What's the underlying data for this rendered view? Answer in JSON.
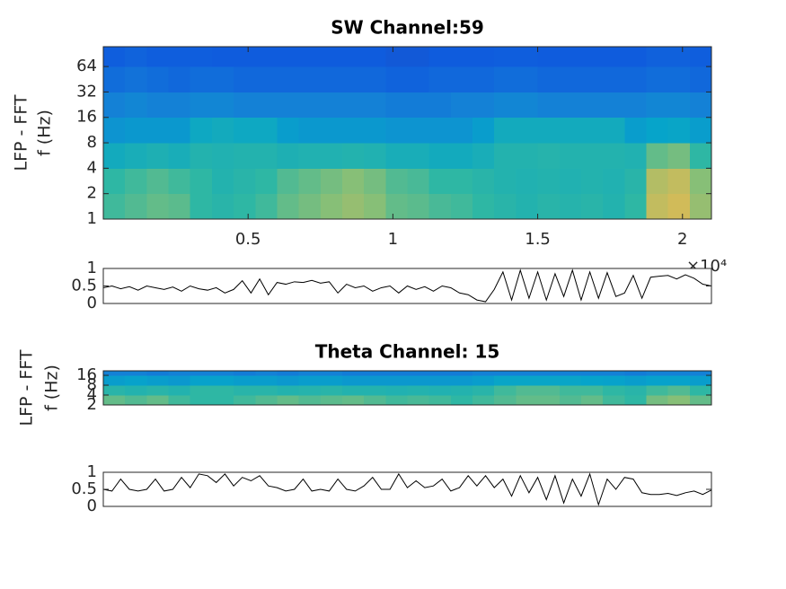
{
  "chart_data": [
    {
      "type": "heatmap",
      "title": "SW Channel:59",
      "ylabel": [
        "LFP - FFT",
        "f (Hz)"
      ],
      "colormap": "parula",
      "clim": [
        0,
        1
      ],
      "yscale": "log",
      "xlim": [
        0,
        21000
      ],
      "xticks": [
        {
          "value": 5000,
          "label": "0.5"
        },
        {
          "value": 10000,
          "label": "1"
        },
        {
          "value": 15000,
          "label": "1.5"
        },
        {
          "value": 20000,
          "label": "2"
        }
      ],
      "x_multiplier": "×10⁴",
      "ylim": [
        1,
        110
      ],
      "yticks": [
        1,
        2,
        4,
        8,
        16,
        32,
        64
      ],
      "xbins": [
        0,
        750,
        1500,
        2250,
        3000,
        3750,
        4500,
        5250,
        6000,
        6750,
        7500,
        8250,
        9000,
        9750,
        10500,
        11250,
        12000,
        12750,
        13500,
        14250,
        15000,
        15750,
        16500,
        17250,
        18000,
        18750,
        19500,
        20250,
        21000
      ],
      "ybins": [
        1,
        2,
        4,
        8,
        16,
        32,
        64,
        110
      ],
      "z": [
        [
          0.62,
          0.64,
          0.66,
          0.65,
          0.6,
          0.58,
          0.6,
          0.62,
          0.66,
          0.68,
          0.7,
          0.72,
          0.7,
          0.66,
          0.65,
          0.63,
          0.62,
          0.6,
          0.58,
          0.56,
          0.58,
          0.57,
          0.58,
          0.56,
          0.6,
          0.78,
          0.8,
          0.72
        ],
        [
          0.6,
          0.62,
          0.64,
          0.62,
          0.6,
          0.56,
          0.58,
          0.6,
          0.64,
          0.66,
          0.68,
          0.7,
          0.68,
          0.64,
          0.63,
          0.6,
          0.6,
          0.58,
          0.56,
          0.55,
          0.56,
          0.55,
          0.56,
          0.55,
          0.58,
          0.76,
          0.78,
          0.7
        ],
        [
          0.5,
          0.52,
          0.54,
          0.52,
          0.56,
          0.55,
          0.56,
          0.56,
          0.54,
          0.55,
          0.55,
          0.56,
          0.55,
          0.52,
          0.52,
          0.5,
          0.5,
          0.52,
          0.56,
          0.56,
          0.57,
          0.56,
          0.56,
          0.56,
          0.55,
          0.66,
          0.68,
          0.6
        ],
        [
          0.38,
          0.4,
          0.4,
          0.4,
          0.48,
          0.5,
          0.48,
          0.48,
          0.42,
          0.4,
          0.4,
          0.4,
          0.4,
          0.38,
          0.38,
          0.38,
          0.38,
          0.42,
          0.5,
          0.5,
          0.5,
          0.5,
          0.5,
          0.5,
          0.42,
          0.45,
          0.46,
          0.42
        ],
        [
          0.3,
          0.32,
          0.3,
          0.3,
          0.32,
          0.32,
          0.3,
          0.3,
          0.3,
          0.3,
          0.3,
          0.3,
          0.3,
          0.28,
          0.28,
          0.28,
          0.3,
          0.3,
          0.32,
          0.32,
          0.3,
          0.3,
          0.3,
          0.3,
          0.3,
          0.32,
          0.32,
          0.3
        ],
        [
          0.22,
          0.24,
          0.22,
          0.2,
          0.22,
          0.22,
          0.2,
          0.2,
          0.2,
          0.2,
          0.2,
          0.2,
          0.2,
          0.18,
          0.18,
          0.2,
          0.2,
          0.2,
          0.22,
          0.22,
          0.2,
          0.2,
          0.2,
          0.2,
          0.2,
          0.22,
          0.22,
          0.2
        ],
        [
          0.16,
          0.18,
          0.16,
          0.16,
          0.16,
          0.15,
          0.15,
          0.15,
          0.15,
          0.15,
          0.15,
          0.15,
          0.15,
          0.14,
          0.14,
          0.15,
          0.15,
          0.15,
          0.16,
          0.16,
          0.15,
          0.15,
          0.15,
          0.15,
          0.15,
          0.17,
          0.17,
          0.16
        ]
      ]
    },
    {
      "type": "line",
      "xlim": [
        0,
        21000
      ],
      "ylim": [
        0,
        1
      ],
      "yticks": [
        0,
        0.5,
        1
      ],
      "color": "#000000",
      "x": [
        0,
        300,
        600,
        900,
        1200,
        1500,
        1800,
        2100,
        2400,
        2700,
        3000,
        3300,
        3600,
        3900,
        4200,
        4500,
        4800,
        5100,
        5400,
        5700,
        6000,
        6300,
        6600,
        6900,
        7200,
        7500,
        7800,
        8100,
        8400,
        8700,
        9000,
        9300,
        9600,
        9900,
        10200,
        10500,
        10800,
        11100,
        11400,
        11700,
        12000,
        12300,
        12600,
        12900,
        13200,
        13500,
        13800,
        14100,
        14400,
        14700,
        15000,
        15300,
        15600,
        15900,
        16200,
        16500,
        16800,
        17100,
        17400,
        17700,
        18000,
        18300,
        18600,
        18900,
        19200,
        19500,
        19800,
        20100,
        20400,
        20700,
        21000
      ],
      "values": [
        0.45,
        0.5,
        0.42,
        0.48,
        0.38,
        0.5,
        0.45,
        0.4,
        0.47,
        0.35,
        0.5,
        0.42,
        0.38,
        0.45,
        0.3,
        0.4,
        0.65,
        0.3,
        0.7,
        0.25,
        0.6,
        0.55,
        0.62,
        0.6,
        0.66,
        0.58,
        0.62,
        0.3,
        0.55,
        0.45,
        0.5,
        0.35,
        0.45,
        0.5,
        0.3,
        0.5,
        0.4,
        0.48,
        0.35,
        0.5,
        0.45,
        0.3,
        0.25,
        0.1,
        0.05,
        0.4,
        0.9,
        0.1,
        0.95,
        0.15,
        0.9,
        0.1,
        0.85,
        0.2,
        0.95,
        0.1,
        0.9,
        0.15,
        0.88,
        0.2,
        0.3,
        0.8,
        0.15,
        0.75,
        0.78,
        0.8,
        0.7,
        0.82,
        0.72,
        0.55,
        0.5
      ]
    },
    {
      "type": "heatmap",
      "title": "Theta Channel: 15",
      "ylabel": [
        "LFP - FFT",
        "f (Hz)"
      ],
      "colormap": "parula",
      "clim": [
        0,
        1
      ],
      "yscale": "log",
      "xlim": [
        0,
        21000
      ],
      "ylim": [
        2,
        22
      ],
      "yticks": [
        2,
        4,
        8,
        16
      ],
      "xbins": [
        0,
        750,
        1500,
        2250,
        3000,
        3750,
        4500,
        5250,
        6000,
        6750,
        7500,
        8250,
        9000,
        9750,
        10500,
        11250,
        12000,
        12750,
        13500,
        14250,
        15000,
        15750,
        16500,
        17250,
        18000,
        18750,
        19500,
        20250,
        21000
      ],
      "ybins": [
        2,
        4,
        8,
        16,
        22
      ],
      "z": [
        [
          0.66,
          0.64,
          0.66,
          0.62,
          0.6,
          0.6,
          0.62,
          0.64,
          0.66,
          0.64,
          0.65,
          0.66,
          0.64,
          0.62,
          0.63,
          0.62,
          0.6,
          0.62,
          0.64,
          0.66,
          0.66,
          0.64,
          0.66,
          0.62,
          0.6,
          0.68,
          0.7,
          0.66
        ],
        [
          0.58,
          0.56,
          0.58,
          0.56,
          0.6,
          0.6,
          0.58,
          0.58,
          0.56,
          0.57,
          0.58,
          0.56,
          0.56,
          0.55,
          0.56,
          0.55,
          0.56,
          0.58,
          0.62,
          0.64,
          0.64,
          0.62,
          0.62,
          0.6,
          0.58,
          0.62,
          0.64,
          0.6
        ],
        [
          0.42,
          0.44,
          0.42,
          0.4,
          0.44,
          0.44,
          0.42,
          0.42,
          0.4,
          0.42,
          0.42,
          0.4,
          0.4,
          0.4,
          0.4,
          0.4,
          0.4,
          0.42,
          0.46,
          0.46,
          0.46,
          0.46,
          0.45,
          0.44,
          0.42,
          0.44,
          0.44,
          0.42
        ],
        [
          0.3,
          0.3,
          0.28,
          0.3,
          0.3,
          0.3,
          0.28,
          0.3,
          0.28,
          0.3,
          0.3,
          0.28,
          0.28,
          0.28,
          0.28,
          0.28,
          0.28,
          0.3,
          0.3,
          0.3,
          0.3,
          0.3,
          0.3,
          0.3,
          0.28,
          0.3,
          0.3,
          0.3
        ]
      ]
    },
    {
      "type": "line",
      "xlim": [
        0,
        21000
      ],
      "ylim": [
        0,
        1
      ],
      "yticks": [
        0,
        0.5,
        1
      ],
      "color": "#000000",
      "x": [
        0,
        300,
        600,
        900,
        1200,
        1500,
        1800,
        2100,
        2400,
        2700,
        3000,
        3300,
        3600,
        3900,
        4200,
        4500,
        4800,
        5100,
        5400,
        5700,
        6000,
        6300,
        6600,
        6900,
        7200,
        7500,
        7800,
        8100,
        8400,
        8700,
        9000,
        9300,
        9600,
        9900,
        10200,
        10500,
        10800,
        11100,
        11400,
        11700,
        12000,
        12300,
        12600,
        12900,
        13200,
        13500,
        13800,
        14100,
        14400,
        14700,
        15000,
        15300,
        15600,
        15900,
        16200,
        16500,
        16800,
        17100,
        17400,
        17700,
        18000,
        18300,
        18600,
        18900,
        19200,
        19500,
        19800,
        20100,
        20400,
        20700,
        21000
      ],
      "values": [
        0.5,
        0.45,
        0.8,
        0.5,
        0.45,
        0.5,
        0.8,
        0.45,
        0.5,
        0.85,
        0.55,
        0.95,
        0.9,
        0.7,
        0.95,
        0.6,
        0.85,
        0.75,
        0.9,
        0.6,
        0.55,
        0.45,
        0.5,
        0.8,
        0.45,
        0.5,
        0.45,
        0.8,
        0.5,
        0.45,
        0.6,
        0.85,
        0.5,
        0.5,
        0.95,
        0.55,
        0.75,
        0.55,
        0.6,
        0.8,
        0.45,
        0.55,
        0.9,
        0.6,
        0.9,
        0.55,
        0.8,
        0.3,
        0.9,
        0.4,
        0.85,
        0.2,
        0.9,
        0.1,
        0.8,
        0.3,
        0.95,
        0.05,
        0.8,
        0.5,
        0.85,
        0.8,
        0.4,
        0.35,
        0.35,
        0.38,
        0.32,
        0.4,
        0.45,
        0.35,
        0.48
      ]
    }
  ]
}
